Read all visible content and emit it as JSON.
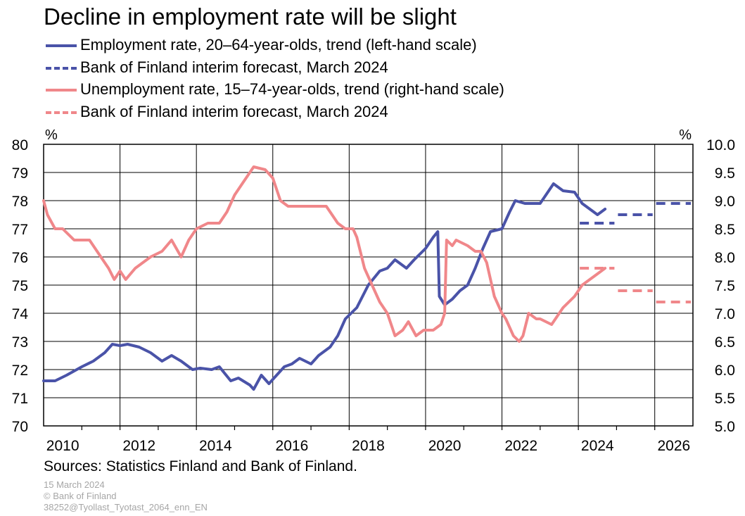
{
  "title": "Decline in employment rate will be slight",
  "sources": "Sources: Statistics Finland and Bank of Finland.",
  "meta": {
    "date": "15 March 2024",
    "copyright": "© Bank of Finland",
    "code": "38252@Tyollast_Tyotast_2064_enn_EN"
  },
  "chart_data": {
    "type": "line",
    "left_axis": {
      "unit": "%",
      "ylim": [
        70,
        80
      ],
      "ticks": [
        "70",
        "71",
        "72",
        "73",
        "74",
        "75",
        "76",
        "77",
        "78",
        "79",
        "80"
      ]
    },
    "right_axis": {
      "unit": "%",
      "ylim": [
        5.0,
        10.0
      ],
      "ticks": [
        "5.0",
        "5.5",
        "6.0",
        "6.5",
        "7.0",
        "7.5",
        "8.0",
        "8.5",
        "9.0",
        "9.5",
        "10.0"
      ]
    },
    "xlim": [
      2010,
      2027
    ],
    "x_ticks": [
      "2010",
      "2012",
      "2014",
      "2016",
      "2018",
      "2020",
      "2022",
      "2024",
      "2026"
    ],
    "grid": true,
    "series": [
      {
        "name": "Employment rate, 20–64-year-olds, trend (left-hand scale)",
        "axis": "left",
        "style": "solid",
        "color": "#4a53a8",
        "points": [
          [
            2010,
            71.6
          ],
          [
            2010.3,
            71.6
          ],
          [
            2010.6,
            71.8
          ],
          [
            2011,
            72.1
          ],
          [
            2011.3,
            72.3
          ],
          [
            2011.6,
            72.6
          ],
          [
            2011.8,
            72.9
          ],
          [
            2012,
            72.85
          ],
          [
            2012.2,
            72.9
          ],
          [
            2012.5,
            72.8
          ],
          [
            2012.8,
            72.6
          ],
          [
            2013.1,
            72.3
          ],
          [
            2013.35,
            72.5
          ],
          [
            2013.6,
            72.3
          ],
          [
            2013.9,
            72.0
          ],
          [
            2014.1,
            72.05
          ],
          [
            2014.4,
            72.0
          ],
          [
            2014.6,
            72.1
          ],
          [
            2014.9,
            71.6
          ],
          [
            2015.1,
            71.7
          ],
          [
            2015.4,
            71.45
          ],
          [
            2015.5,
            71.3
          ],
          [
            2015.7,
            71.8
          ],
          [
            2015.9,
            71.5
          ],
          [
            2016.1,
            71.8
          ],
          [
            2016.3,
            72.1
          ],
          [
            2016.5,
            72.2
          ],
          [
            2016.7,
            72.4
          ],
          [
            2017,
            72.2
          ],
          [
            2017.2,
            72.5
          ],
          [
            2017.5,
            72.8
          ],
          [
            2017.7,
            73.2
          ],
          [
            2017.9,
            73.8
          ],
          [
            2018.2,
            74.2
          ],
          [
            2018.5,
            75.0
          ],
          [
            2018.8,
            75.5
          ],
          [
            2019.0,
            75.6
          ],
          [
            2019.2,
            75.9
          ],
          [
            2019.5,
            75.6
          ],
          [
            2019.7,
            75.9
          ],
          [
            2020.0,
            76.3
          ],
          [
            2020.2,
            76.7
          ],
          [
            2020.32,
            76.9
          ],
          [
            2020.36,
            74.6
          ],
          [
            2020.5,
            74.3
          ],
          [
            2020.7,
            74.5
          ],
          [
            2020.9,
            74.8
          ],
          [
            2021.1,
            75.0
          ],
          [
            2021.3,
            75.6
          ],
          [
            2021.5,
            76.3
          ],
          [
            2021.7,
            76.9
          ],
          [
            2022.0,
            77.0
          ],
          [
            2022.2,
            77.6
          ],
          [
            2022.35,
            78.0
          ],
          [
            2022.6,
            77.9
          ],
          [
            2023.0,
            77.9
          ],
          [
            2023.2,
            78.3
          ],
          [
            2023.35,
            78.6
          ],
          [
            2023.6,
            78.35
          ],
          [
            2023.9,
            78.3
          ],
          [
            2024.1,
            77.9
          ],
          [
            2024.3,
            77.7
          ],
          [
            2024.5,
            77.5
          ],
          [
            2024.7,
            77.7
          ]
        ]
      },
      {
        "name": "Bank of Finland interim forecast, March 2024",
        "axis": "left",
        "style": "dashed",
        "color": "#4a53a8",
        "points": [
          [
            2024,
            77.2
          ],
          [
            2025,
            77.5
          ],
          [
            2026,
            77.9
          ]
        ]
      },
      {
        "name": "Unemployment rate, 15–74-year-olds, trend (right-hand scale)",
        "axis": "right",
        "style": "solid",
        "color": "#f0878a",
        "points": [
          [
            2010,
            9.0
          ],
          [
            2010.1,
            8.75
          ],
          [
            2010.3,
            8.5
          ],
          [
            2010.5,
            8.5
          ],
          [
            2010.8,
            8.3
          ],
          [
            2011.2,
            8.3
          ],
          [
            2011.5,
            8.0
          ],
          [
            2011.7,
            7.8
          ],
          [
            2011.85,
            7.6
          ],
          [
            2012.0,
            7.75
          ],
          [
            2012.15,
            7.6
          ],
          [
            2012.4,
            7.8
          ],
          [
            2012.8,
            8.0
          ],
          [
            2013.1,
            8.1
          ],
          [
            2013.35,
            8.3
          ],
          [
            2013.6,
            8.0
          ],
          [
            2013.8,
            8.3
          ],
          [
            2014.0,
            8.5
          ],
          [
            2014.3,
            8.6
          ],
          [
            2014.6,
            8.6
          ],
          [
            2014.8,
            8.8
          ],
          [
            2015.0,
            9.1
          ],
          [
            2015.2,
            9.3
          ],
          [
            2015.5,
            9.6
          ],
          [
            2015.8,
            9.55
          ],
          [
            2016.0,
            9.4
          ],
          [
            2016.2,
            9.0
          ],
          [
            2016.4,
            8.9
          ],
          [
            2016.7,
            8.9
          ],
          [
            2016.9,
            8.9
          ],
          [
            2017.1,
            8.9
          ],
          [
            2017.4,
            8.9
          ],
          [
            2017.7,
            8.6
          ],
          [
            2017.9,
            8.5
          ],
          [
            2018.1,
            8.5
          ],
          [
            2018.2,
            8.35
          ],
          [
            2018.4,
            7.8
          ],
          [
            2018.6,
            7.5
          ],
          [
            2018.8,
            7.2
          ],
          [
            2019.0,
            7.0
          ],
          [
            2019.2,
            6.6
          ],
          [
            2019.4,
            6.7
          ],
          [
            2019.55,
            6.85
          ],
          [
            2019.75,
            6.6
          ],
          [
            2019.95,
            6.7
          ],
          [
            2020.2,
            6.7
          ],
          [
            2020.4,
            6.8
          ],
          [
            2020.5,
            7.0
          ],
          [
            2020.55,
            8.3
          ],
          [
            2020.7,
            8.2
          ],
          [
            2020.8,
            8.3
          ],
          [
            2021.1,
            8.2
          ],
          [
            2021.3,
            8.1
          ],
          [
            2021.45,
            8.1
          ],
          [
            2021.6,
            7.9
          ],
          [
            2021.8,
            7.3
          ],
          [
            2022.0,
            7.0
          ],
          [
            2022.1,
            6.9
          ],
          [
            2022.3,
            6.6
          ],
          [
            2022.45,
            6.5
          ],
          [
            2022.55,
            6.6
          ],
          [
            2022.7,
            7.0
          ],
          [
            2022.9,
            6.9
          ],
          [
            2023.0,
            6.9
          ],
          [
            2023.3,
            6.8
          ],
          [
            2023.6,
            7.1
          ],
          [
            2023.9,
            7.3
          ],
          [
            2024.1,
            7.5
          ],
          [
            2024.3,
            7.6
          ],
          [
            2024.5,
            7.7
          ],
          [
            2024.7,
            7.8
          ]
        ]
      },
      {
        "name": "Bank of Finland interim forecast, March 2024",
        "axis": "right",
        "style": "dashed",
        "color": "#f0878a",
        "points": [
          [
            2024,
            7.8
          ],
          [
            2025,
            7.4
          ],
          [
            2026,
            7.2
          ]
        ]
      }
    ]
  }
}
